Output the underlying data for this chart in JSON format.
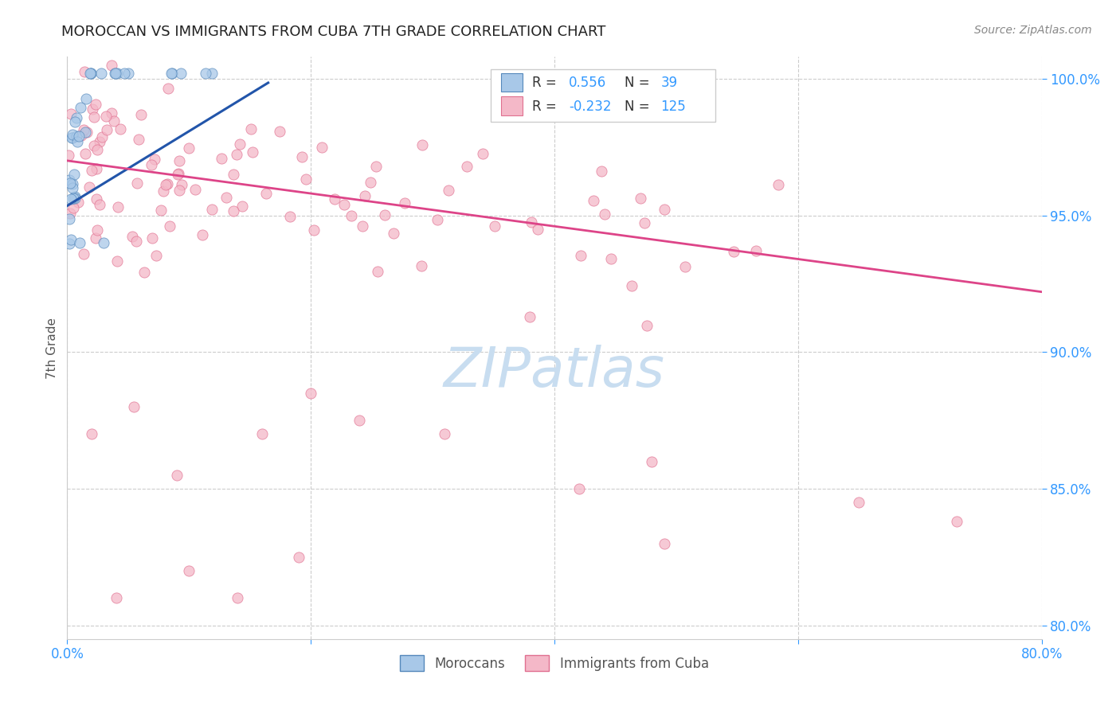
{
  "title": "MOROCCAN VS IMMIGRANTS FROM CUBA 7TH GRADE CORRELATION CHART",
  "source": "Source: ZipAtlas.com",
  "ylabel": "7th Grade",
  "x_min": 0.0,
  "x_max": 0.8,
  "y_min": 0.795,
  "y_max": 1.008,
  "x_tick_positions": [
    0.0,
    0.2,
    0.4,
    0.6,
    0.8
  ],
  "x_tick_labels": [
    "0.0%",
    "",
    "",
    "",
    "80.0%"
  ],
  "y_tick_positions": [
    0.8,
    0.85,
    0.9,
    0.95,
    1.0
  ],
  "y_tick_labels": [
    "80.0%",
    "85.0%",
    "90.0%",
    "95.0%",
    "100.0%"
  ],
  "blue_R": 0.556,
  "blue_N": 39,
  "pink_R": -0.232,
  "pink_N": 125,
  "blue_color": "#a8c8e8",
  "pink_color": "#f4b8c8",
  "blue_edge_color": "#5588bb",
  "pink_edge_color": "#e07090",
  "blue_line_color": "#2255aa",
  "pink_line_color": "#dd4488",
  "legend_label_blue": "Moroccans",
  "legend_label_pink": "Immigrants from Cuba",
  "blue_line_x": [
    0.0,
    0.165
  ],
  "blue_line_y": [
    0.9535,
    0.9985
  ],
  "pink_line_x": [
    0.0,
    0.8
  ],
  "pink_line_y": [
    0.97,
    0.922
  ],
  "watermark": "ZIPatlas",
  "watermark_color": "#c8ddf0",
  "title_color": "#222222",
  "source_color": "#888888",
  "tick_color": "#3399ff",
  "ylabel_color": "#555555"
}
